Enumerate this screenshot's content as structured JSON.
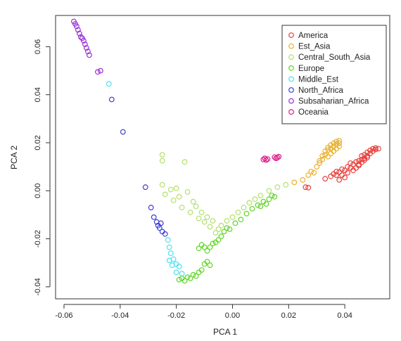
{
  "chart_data": {
    "type": "scatter",
    "title": "",
    "xlabel": "PCA 1",
    "ylabel": "PCA 2",
    "xlim": [
      -0.063,
      0.056
    ],
    "ylim": [
      -0.045,
      0.073
    ],
    "x_ticks": [
      -0.06,
      -0.04,
      -0.02,
      0.0,
      0.02,
      0.04
    ],
    "x_tick_labels": [
      "-0.06",
      "-0.04",
      "-0.02",
      "0.00",
      "0.02",
      "0.04"
    ],
    "y_ticks": [
      -0.04,
      -0.02,
      0.0,
      0.02,
      0.04,
      0.06
    ],
    "y_tick_labels": [
      "-0.04",
      "-0.02",
      "0.00",
      "0.02",
      "0.04",
      "0.06"
    ],
    "grid": false,
    "legend_position": "top-right",
    "marker": "open-circle",
    "series": [
      {
        "name": "America",
        "color": "#e8413c",
        "points": [
          [
            0.026,
            0.0015
          ],
          [
            0.027,
            0.0013
          ],
          [
            0.033,
            0.005
          ],
          [
            0.035,
            0.006
          ],
          [
            0.036,
            0.007
          ],
          [
            0.037,
            0.0065
          ],
          [
            0.037,
            0.008
          ],
          [
            0.038,
            0.0078
          ],
          [
            0.038,
            0.0045
          ],
          [
            0.039,
            0.0065
          ],
          [
            0.039,
            0.009
          ],
          [
            0.04,
            0.0085
          ],
          [
            0.04,
            0.0055
          ],
          [
            0.041,
            0.01
          ],
          [
            0.041,
            0.0075
          ],
          [
            0.042,
            0.0095
          ],
          [
            0.042,
            0.0115
          ],
          [
            0.043,
            0.011
          ],
          [
            0.043,
            0.0085
          ],
          [
            0.044,
            0.012
          ],
          [
            0.044,
            0.0095
          ],
          [
            0.045,
            0.0125
          ],
          [
            0.045,
            0.011
          ],
          [
            0.046,
            0.013
          ],
          [
            0.046,
            0.0145
          ],
          [
            0.047,
            0.0135
          ],
          [
            0.047,
            0.015
          ],
          [
            0.048,
            0.0145
          ],
          [
            0.048,
            0.016
          ],
          [
            0.049,
            0.0155
          ],
          [
            0.049,
            0.0168
          ],
          [
            0.05,
            0.0165
          ],
          [
            0.05,
            0.0175
          ],
          [
            0.051,
            0.0172
          ],
          [
            0.051,
            0.0178
          ],
          [
            0.052,
            0.0175
          ],
          [
            0.045,
            0.0105
          ],
          [
            0.046,
            0.0118
          ],
          [
            0.047,
            0.0128
          ],
          [
            0.048,
            0.0138
          ]
        ]
      },
      {
        "name": "Est_Asia",
        "color": "#e9b030",
        "points": [
          [
            0.022,
            0.0035
          ],
          [
            0.025,
            0.0045
          ],
          [
            0.027,
            0.0065
          ],
          [
            0.028,
            0.008
          ],
          [
            0.029,
            0.0075
          ],
          [
            0.03,
            0.01
          ],
          [
            0.031,
            0.0115
          ],
          [
            0.031,
            0.0125
          ],
          [
            0.032,
            0.013
          ],
          [
            0.032,
            0.0145
          ],
          [
            0.033,
            0.015
          ],
          [
            0.033,
            0.0165
          ],
          [
            0.034,
            0.017
          ],
          [
            0.034,
            0.018
          ],
          [
            0.035,
            0.0175
          ],
          [
            0.035,
            0.019
          ],
          [
            0.036,
            0.0185
          ],
          [
            0.036,
            0.0198
          ],
          [
            0.037,
            0.0195
          ],
          [
            0.037,
            0.0205
          ],
          [
            0.038,
            0.0198
          ],
          [
            0.038,
            0.0208
          ],
          [
            0.036,
            0.0165
          ],
          [
            0.035,
            0.0155
          ],
          [
            0.034,
            0.0142
          ],
          [
            0.037,
            0.0175
          ],
          [
            0.038,
            0.0185
          ]
        ]
      },
      {
        "name": "Central_South_Asia",
        "color": "#b4e06e",
        "points": [
          [
            -0.025,
            0.0025
          ],
          [
            -0.024,
            -0.0015
          ],
          [
            -0.022,
            0.0005
          ],
          [
            -0.021,
            -0.004
          ],
          [
            -0.02,
            0.001
          ],
          [
            -0.019,
            -0.0025
          ],
          [
            -0.018,
            -0.007
          ],
          [
            -0.017,
            0.012
          ],
          [
            -0.016,
            -0.0005
          ],
          [
            -0.015,
            -0.009
          ],
          [
            -0.014,
            -0.0045
          ],
          [
            -0.013,
            -0.0065
          ],
          [
            -0.012,
            -0.0115
          ],
          [
            -0.011,
            -0.009
          ],
          [
            -0.01,
            -0.013
          ],
          [
            -0.009,
            -0.011
          ],
          [
            -0.008,
            -0.015
          ],
          [
            -0.007,
            -0.0125
          ],
          [
            -0.006,
            -0.0175
          ],
          [
            -0.005,
            -0.016
          ],
          [
            -0.004,
            -0.0145
          ],
          [
            -0.002,
            -0.0125
          ],
          [
            0.0,
            -0.011
          ],
          [
            0.002,
            -0.009
          ],
          [
            0.004,
            -0.007
          ],
          [
            0.006,
            -0.005
          ],
          [
            0.008,
            -0.0035
          ],
          [
            0.01,
            -0.002
          ],
          [
            0.013,
            0.0
          ],
          [
            0.016,
            0.0015
          ],
          [
            0.019,
            0.0025
          ],
          [
            -0.025,
            0.015
          ],
          [
            -0.025,
            0.0125
          ]
        ]
      },
      {
        "name": "Europe",
        "color": "#5fd626",
        "points": [
          [
            -0.019,
            -0.037
          ],
          [
            -0.018,
            -0.0365
          ],
          [
            -0.017,
            -0.0375
          ],
          [
            -0.016,
            -0.036
          ],
          [
            -0.015,
            -0.0365
          ],
          [
            -0.014,
            -0.035
          ],
          [
            -0.013,
            -0.0355
          ],
          [
            -0.012,
            -0.034
          ],
          [
            -0.011,
            -0.033
          ],
          [
            -0.01,
            -0.0305
          ],
          [
            -0.009,
            -0.0295
          ],
          [
            -0.008,
            -0.031
          ],
          [
            -0.011,
            -0.0225
          ],
          [
            -0.012,
            -0.024
          ],
          [
            -0.01,
            -0.0235
          ],
          [
            -0.009,
            -0.025
          ],
          [
            -0.008,
            -0.0235
          ],
          [
            -0.007,
            -0.022
          ],
          [
            -0.006,
            -0.0215
          ],
          [
            -0.005,
            -0.0205
          ],
          [
            -0.004,
            -0.019
          ],
          [
            -0.003,
            -0.017
          ],
          [
            -0.002,
            -0.0155
          ],
          [
            -0.001,
            -0.016
          ],
          [
            0.001,
            -0.0135
          ],
          [
            0.003,
            -0.012
          ],
          [
            0.005,
            -0.0095
          ],
          [
            0.007,
            -0.0075
          ],
          [
            0.009,
            -0.006
          ],
          [
            0.011,
            -0.0045
          ],
          [
            0.013,
            -0.0035
          ],
          [
            0.014,
            -0.002
          ],
          [
            0.015,
            -0.0025
          ],
          [
            0.012,
            -0.0055
          ],
          [
            0.01,
            -0.0065
          ]
        ]
      },
      {
        "name": "Middle_Est",
        "color": "#4de0f0",
        "points": [
          [
            -0.044,
            0.0445
          ],
          [
            -0.023,
            -0.0205
          ],
          [
            -0.0225,
            -0.0235
          ],
          [
            -0.022,
            -0.026
          ],
          [
            -0.021,
            -0.0285
          ],
          [
            -0.02,
            -0.0305
          ],
          [
            -0.019,
            -0.0315
          ],
          [
            -0.0225,
            -0.029
          ],
          [
            -0.0215,
            -0.031
          ],
          [
            -0.02,
            -0.034
          ],
          [
            -0.018,
            -0.0345
          ]
        ]
      },
      {
        "name": "North_Africa",
        "color": "#3d3dd6",
        "points": [
          [
            -0.043,
            0.038
          ],
          [
            -0.039,
            0.0245
          ],
          [
            -0.031,
            0.0015
          ],
          [
            -0.029,
            -0.007
          ],
          [
            -0.028,
            -0.011
          ],
          [
            -0.027,
            -0.013
          ],
          [
            -0.0265,
            -0.0145
          ],
          [
            -0.026,
            -0.0155
          ],
          [
            -0.025,
            -0.017
          ],
          [
            -0.024,
            -0.018
          ],
          [
            -0.0255,
            -0.0135
          ]
        ]
      },
      {
        "name": "Subsaharian_Africa",
        "color": "#9b2ed6",
        "points": [
          [
            -0.0565,
            0.0705
          ],
          [
            -0.056,
            0.0695
          ],
          [
            -0.0555,
            0.0685
          ],
          [
            -0.055,
            0.067
          ],
          [
            -0.0545,
            0.0655
          ],
          [
            -0.054,
            0.064
          ],
          [
            -0.0535,
            0.0635
          ],
          [
            -0.053,
            0.0625
          ],
          [
            -0.0525,
            0.061
          ],
          [
            -0.052,
            0.0595
          ],
          [
            -0.0515,
            0.058
          ],
          [
            -0.051,
            0.0565
          ],
          [
            -0.048,
            0.0495
          ],
          [
            -0.047,
            0.05
          ]
        ]
      },
      {
        "name": "Oceania",
        "color": "#e0198b",
        "points": [
          [
            0.011,
            0.013
          ],
          [
            0.0115,
            0.0135
          ],
          [
            0.012,
            0.0128
          ],
          [
            0.0125,
            0.0132
          ],
          [
            0.015,
            0.014
          ],
          [
            0.0155,
            0.0135
          ],
          [
            0.016,
            0.0138
          ],
          [
            0.0165,
            0.0142
          ]
        ]
      }
    ]
  }
}
